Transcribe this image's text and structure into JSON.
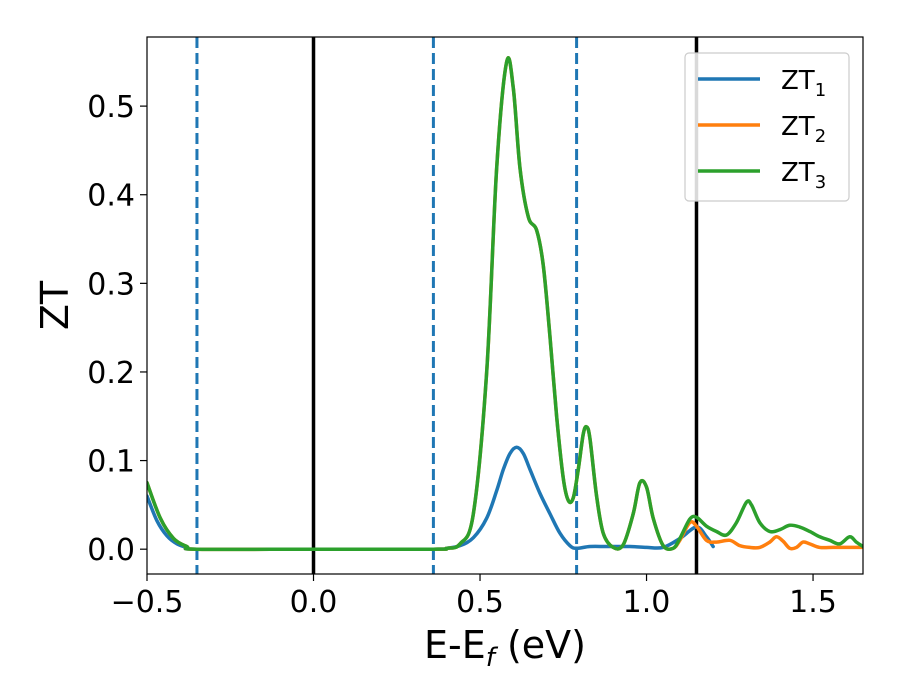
{
  "chart_data": {
    "type": "line",
    "title": "",
    "xlabel": {
      "main": "E-E",
      "sub": "f",
      "unit": " (eV)"
    },
    "ylabel": "ZT",
    "xlim": [
      -0.5,
      1.65
    ],
    "ylim": [
      -0.028,
      0.578
    ],
    "grid": false,
    "legend_position": "top-right",
    "x_ticks": [
      {
        "value": -0.5,
        "label": "−0.5"
      },
      {
        "value": 0.0,
        "label": "0.0"
      },
      {
        "value": 0.5,
        "label": "0.5"
      },
      {
        "value": 1.0,
        "label": "1.0"
      },
      {
        "value": 1.5,
        "label": "1.5"
      }
    ],
    "y_ticks": [
      {
        "value": 0.0,
        "label": "0.0"
      },
      {
        "value": 0.1,
        "label": "0.1"
      },
      {
        "value": 0.2,
        "label": "0.2"
      },
      {
        "value": 0.3,
        "label": "0.3"
      },
      {
        "value": 0.4,
        "label": "0.4"
      },
      {
        "value": 0.5,
        "label": "0.5"
      }
    ],
    "vertical_lines": [
      {
        "x": -0.35,
        "style": "dashed",
        "color": "#1f77b4"
      },
      {
        "x": 0.0,
        "style": "solid",
        "color": "#000000"
      },
      {
        "x": 0.36,
        "style": "dashed",
        "color": "#1f77b4"
      },
      {
        "x": 0.79,
        "style": "dashed",
        "color": "#1f77b4"
      },
      {
        "x": 1.15,
        "style": "solid",
        "color": "#000000"
      }
    ],
    "series": [
      {
        "name": "ZT",
        "name_sub": "1",
        "color": "#1f77b4",
        "points": [
          [
            -0.5,
            0.06
          ],
          [
            -0.47,
            0.032
          ],
          [
            -0.44,
            0.015
          ],
          [
            -0.41,
            0.006
          ],
          [
            -0.38,
            0.002
          ],
          [
            -0.35,
            0.0
          ],
          [
            0.0,
            0.0
          ],
          [
            0.36,
            0.0
          ],
          [
            0.4,
            0.001
          ],
          [
            0.44,
            0.004
          ],
          [
            0.48,
            0.013
          ],
          [
            0.52,
            0.035
          ],
          [
            0.55,
            0.066
          ],
          [
            0.57,
            0.09
          ],
          [
            0.59,
            0.108
          ],
          [
            0.61,
            0.115
          ],
          [
            0.63,
            0.108
          ],
          [
            0.65,
            0.09
          ],
          [
            0.68,
            0.063
          ],
          [
            0.71,
            0.04
          ],
          [
            0.74,
            0.018
          ],
          [
            0.77,
            0.004
          ],
          [
            0.79,
            0.001
          ],
          [
            0.83,
            0.003
          ],
          [
            0.88,
            0.003
          ],
          [
            0.95,
            0.003
          ],
          [
            1.0,
            0.002
          ],
          [
            1.05,
            0.002
          ],
          [
            1.1,
            0.012
          ],
          [
            1.15,
            0.025
          ],
          [
            1.18,
            0.014
          ],
          [
            1.2,
            0.003
          ]
        ]
      },
      {
        "name": "ZT",
        "name_sub": "2",
        "color": "#ff7f0e",
        "points": [
          [
            -0.5,
            0.075
          ],
          [
            -0.46,
            0.035
          ],
          [
            -0.42,
            0.012
          ],
          [
            -0.38,
            0.003
          ],
          [
            -0.35,
            0.0
          ],
          [
            0.0,
            0.0
          ],
          [
            0.36,
            0.0
          ],
          [
            0.4,
            0.001
          ],
          [
            0.44,
            0.006
          ],
          [
            0.48,
            0.04
          ],
          [
            0.52,
            0.2
          ],
          [
            0.55,
            0.43
          ],
          [
            0.58,
            0.55
          ],
          [
            0.6,
            0.52
          ],
          [
            0.62,
            0.43
          ],
          [
            0.645,
            0.375
          ],
          [
            0.67,
            0.36
          ],
          [
            0.69,
            0.32
          ],
          [
            0.71,
            0.24
          ],
          [
            0.73,
            0.15
          ],
          [
            0.75,
            0.08
          ],
          [
            0.765,
            0.055
          ],
          [
            0.78,
            0.058
          ],
          [
            0.795,
            0.09
          ],
          [
            0.81,
            0.13
          ],
          [
            0.82,
            0.138
          ],
          [
            0.83,
            0.125
          ],
          [
            0.85,
            0.06
          ],
          [
            0.87,
            0.018
          ],
          [
            0.9,
            0.002
          ],
          [
            0.93,
            0.005
          ],
          [
            0.96,
            0.04
          ],
          [
            0.98,
            0.075
          ],
          [
            1.0,
            0.07
          ],
          [
            1.02,
            0.035
          ],
          [
            1.05,
            0.004
          ],
          [
            1.08,
            0.001
          ],
          [
            1.1,
            0.01
          ],
          [
            1.13,
            0.03
          ],
          [
            1.15,
            0.026
          ],
          [
            1.18,
            0.01
          ],
          [
            1.21,
            0.008
          ],
          [
            1.25,
            0.01
          ],
          [
            1.28,
            0.004
          ],
          [
            1.31,
            0.002
          ],
          [
            1.34,
            0.002
          ],
          [
            1.37,
            0.008
          ],
          [
            1.39,
            0.014
          ],
          [
            1.41,
            0.009
          ],
          [
            1.43,
            0.001
          ],
          [
            1.45,
            0.002
          ],
          [
            1.47,
            0.008
          ],
          [
            1.49,
            0.006
          ],
          [
            1.52,
            0.002
          ],
          [
            1.56,
            0.002
          ],
          [
            1.6,
            0.002
          ],
          [
            1.65,
            0.002
          ]
        ]
      },
      {
        "name": "ZT",
        "name_sub": "3",
        "color": "#2ca02c",
        "points": [
          [
            -0.5,
            0.075
          ],
          [
            -0.46,
            0.035
          ],
          [
            -0.42,
            0.012
          ],
          [
            -0.38,
            0.003
          ],
          [
            -0.35,
            0.0
          ],
          [
            0.0,
            0.0
          ],
          [
            0.36,
            0.0
          ],
          [
            0.4,
            0.001
          ],
          [
            0.44,
            0.006
          ],
          [
            0.48,
            0.04
          ],
          [
            0.52,
            0.2
          ],
          [
            0.55,
            0.43
          ],
          [
            0.58,
            0.55
          ],
          [
            0.6,
            0.52
          ],
          [
            0.62,
            0.43
          ],
          [
            0.645,
            0.375
          ],
          [
            0.67,
            0.36
          ],
          [
            0.69,
            0.32
          ],
          [
            0.71,
            0.24
          ],
          [
            0.73,
            0.15
          ],
          [
            0.75,
            0.08
          ],
          [
            0.765,
            0.055
          ],
          [
            0.78,
            0.058
          ],
          [
            0.795,
            0.09
          ],
          [
            0.81,
            0.13
          ],
          [
            0.82,
            0.138
          ],
          [
            0.83,
            0.125
          ],
          [
            0.85,
            0.06
          ],
          [
            0.87,
            0.018
          ],
          [
            0.9,
            0.002
          ],
          [
            0.93,
            0.005
          ],
          [
            0.96,
            0.04
          ],
          [
            0.98,
            0.075
          ],
          [
            1.0,
            0.07
          ],
          [
            1.02,
            0.035
          ],
          [
            1.05,
            0.004
          ],
          [
            1.08,
            0.001
          ],
          [
            1.1,
            0.012
          ],
          [
            1.13,
            0.034
          ],
          [
            1.15,
            0.036
          ],
          [
            1.18,
            0.026
          ],
          [
            1.21,
            0.02
          ],
          [
            1.24,
            0.016
          ],
          [
            1.27,
            0.03
          ],
          [
            1.3,
            0.053
          ],
          [
            1.315,
            0.05
          ],
          [
            1.34,
            0.03
          ],
          [
            1.37,
            0.02
          ],
          [
            1.4,
            0.022
          ],
          [
            1.43,
            0.027
          ],
          [
            1.46,
            0.025
          ],
          [
            1.49,
            0.02
          ],
          [
            1.52,
            0.014
          ],
          [
            1.55,
            0.01
          ],
          [
            1.58,
            0.006
          ],
          [
            1.61,
            0.014
          ],
          [
            1.63,
            0.008
          ],
          [
            1.65,
            0.003
          ]
        ]
      }
    ]
  }
}
